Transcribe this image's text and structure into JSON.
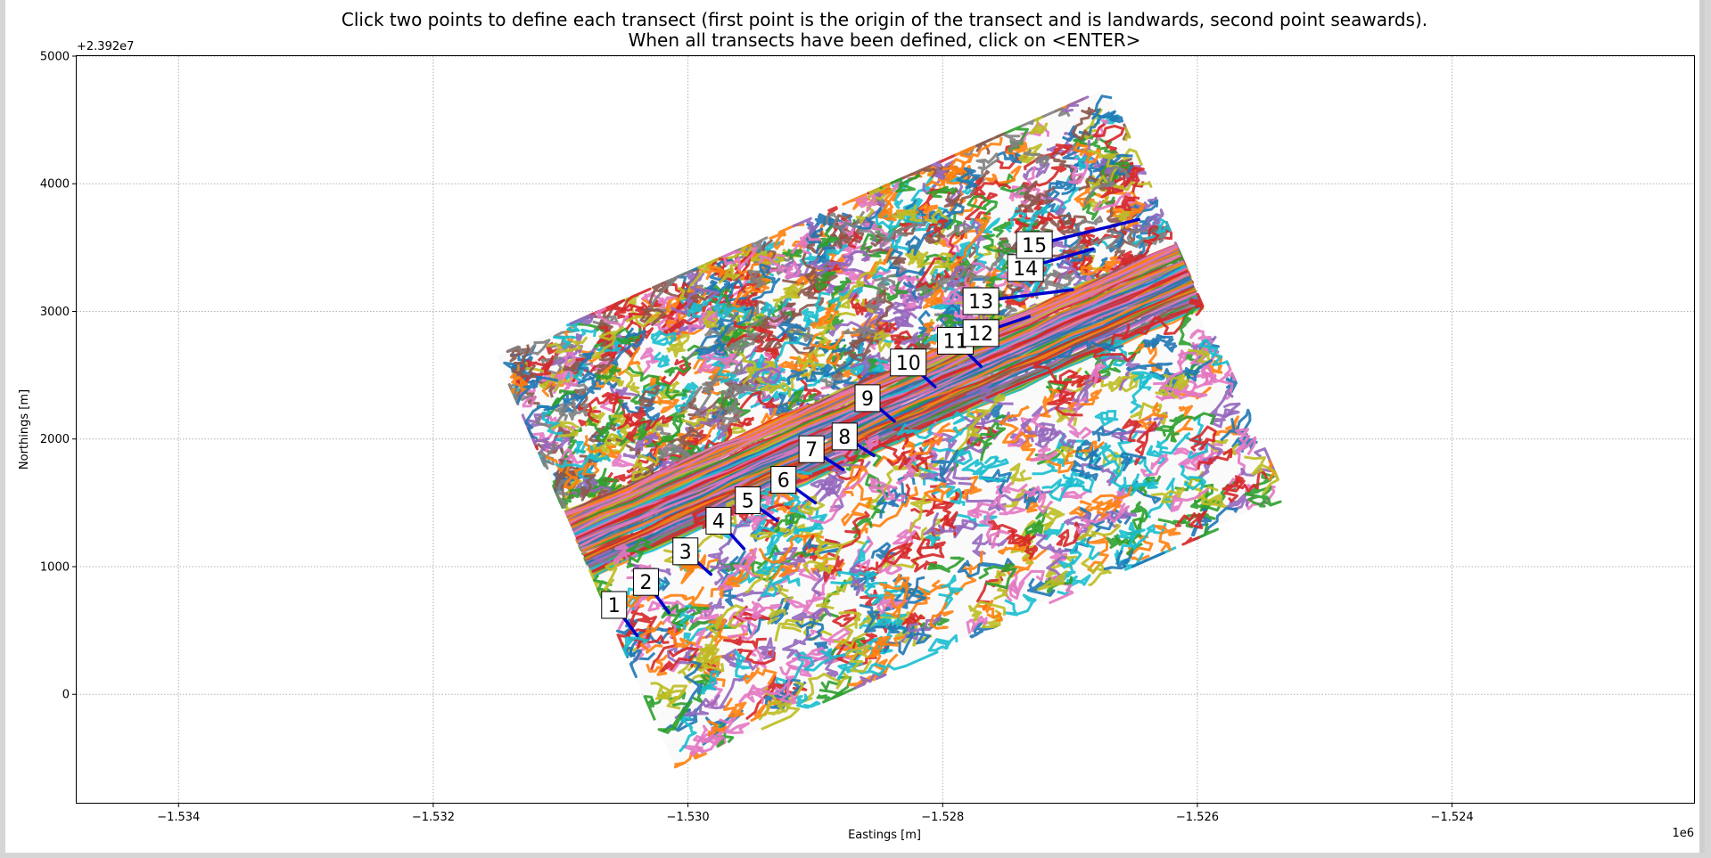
{
  "chart_data": {
    "type": "scatter",
    "title": "Click two points to define each transect (first point is the origin of the transect and is landwards, second point seawards).\nWhen all transects have been defined, click on <ENTER>",
    "xlabel": "Eastings [m]",
    "ylabel": "Northings [m]",
    "x_offset_label": "1e6",
    "y_offset_label": "+2.392e7",
    "xlim": [
      -1534.8,
      -1522.1
    ],
    "ylim": [
      -850,
      5000
    ],
    "x_ticks": [
      -1534,
      -1532,
      -1530,
      -1528,
      -1526,
      -1524
    ],
    "x_tick_labels": [
      "−1.534",
      "−1.532",
      "−1.530",
      "−1.528",
      "−1.526",
      "−1.524"
    ],
    "y_ticks": [
      0,
      1000,
      2000,
      3000,
      4000,
      5000
    ],
    "y_tick_labels": [
      "0",
      "1000",
      "2000",
      "3000",
      "4000",
      "5000"
    ],
    "grid": true,
    "grid_style": "dotted",
    "shoreline_region": {
      "description_free": true,
      "corners": [
        [
          -1531.5,
          2650
        ],
        [
          -1526.7,
          4750
        ],
        [
          -1525.4,
          1520
        ],
        [
          -1530.1,
          -570
        ]
      ],
      "palette": [
        "#1f77b4",
        "#ff7f0e",
        "#2ca02c",
        "#d62728",
        "#9467bd",
        "#8c564b",
        "#e377c2",
        "#7f7f7f",
        "#bcbd22",
        "#17becf"
      ]
    },
    "transect_color": "#0000cc",
    "transects": [
      {
        "label": "1",
        "start": [
          -1530.58,
          700
        ],
        "end": [
          -1530.4,
          460
        ]
      },
      {
        "label": "2",
        "start": [
          -1530.33,
          880
        ],
        "end": [
          -1530.15,
          640
        ]
      },
      {
        "label": "3",
        "start": [
          -1530.02,
          1120
        ],
        "end": [
          -1529.82,
          940
        ]
      },
      {
        "label": "4",
        "start": [
          -1529.76,
          1360
        ],
        "end": [
          -1529.56,
          1140
        ]
      },
      {
        "label": "5",
        "start": [
          -1529.53,
          1520
        ],
        "end": [
          -1529.3,
          1360
        ]
      },
      {
        "label": "6",
        "start": [
          -1529.25,
          1680
        ],
        "end": [
          -1529.0,
          1500
        ]
      },
      {
        "label": "7",
        "start": [
          -1529.03,
          1920
        ],
        "end": [
          -1528.78,
          1760
        ]
      },
      {
        "label": "8",
        "start": [
          -1528.77,
          2020
        ],
        "end": [
          -1528.54,
          1870
        ]
      },
      {
        "label": "9",
        "start": [
          -1528.59,
          2320
        ],
        "end": [
          -1528.38,
          2140
        ]
      },
      {
        "label": "10",
        "start": [
          -1528.27,
          2600
        ],
        "end": [
          -1528.06,
          2410
        ]
      },
      {
        "label": "11",
        "start": [
          -1527.9,
          2770
        ],
        "end": [
          -1527.7,
          2570
        ]
      },
      {
        "label": "12",
        "start": [
          -1527.7,
          2830
        ],
        "end": [
          -1527.32,
          2960
        ]
      },
      {
        "label": "13",
        "start": [
          -1527.7,
          3080
        ],
        "end": [
          -1526.98,
          3170
        ]
      },
      {
        "label": "14",
        "start": [
          -1527.35,
          3340
        ],
        "end": [
          -1526.82,
          3490
        ]
      },
      {
        "label": "15",
        "start": [
          -1527.28,
          3520
        ],
        "end": [
          -1526.46,
          3720
        ]
      }
    ]
  }
}
